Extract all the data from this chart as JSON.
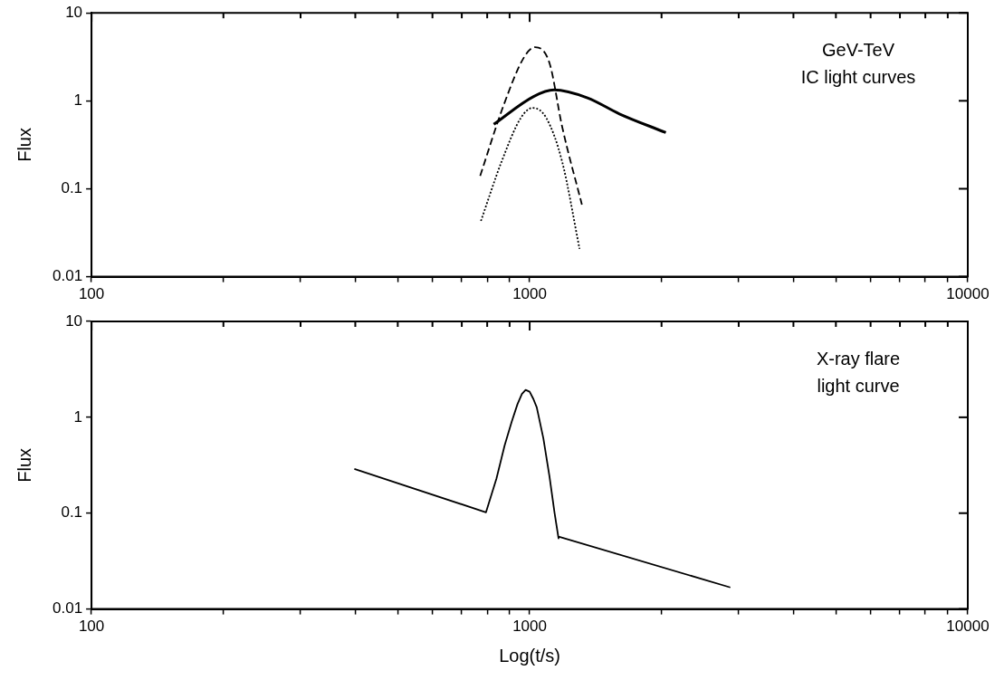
{
  "chart_data": [
    {
      "type": "line",
      "ylabel": "Flux",
      "log": "xy",
      "grid": false,
      "legend": false,
      "marker": "none",
      "xlim": [
        100,
        10000
      ],
      "ylim": [
        0.01,
        10
      ],
      "xticks": [
        100,
        {
          "value": 200,
          "label": null
        },
        {
          "value": 300,
          "label": null
        },
        {
          "value": 400,
          "label": null
        },
        {
          "value": 500,
          "label": null
        },
        {
          "value": 600,
          "label": null
        },
        {
          "value": 700,
          "label": null
        },
        {
          "value": 800,
          "label": null
        },
        {
          "value": 900,
          "label": null
        },
        1000,
        {
          "value": 2000,
          "label": null
        },
        {
          "value": 3000,
          "label": null
        },
        {
          "value": 4000,
          "label": null
        },
        {
          "value": 5000,
          "label": null
        },
        {
          "value": 6000,
          "label": null
        },
        {
          "value": 7000,
          "label": null
        },
        {
          "value": 8000,
          "label": null
        },
        {
          "value": 9000,
          "label": null
        },
        10000
      ],
      "yticks": [
        0.01,
        0.1,
        1,
        10
      ],
      "annotations": [
        "GeV-TeV",
        "IC light curves"
      ],
      "series": [
        {
          "color": "#000000",
          "line_style": "solid",
          "x": [
            828,
            1021,
            1137,
            1355,
            1603,
            2046
          ],
          "values": [
            0.54,
            1.12,
            1.33,
            1.08,
            0.71,
            0.435
          ]
        },
        {
          "color": "#000000",
          "line_style": "dashed",
          "x": [
            771,
            870,
            970,
            1029,
            1110,
            1186,
            1316
          ],
          "values": [
            0.14,
            0.86,
            3.1,
            4.07,
            2.68,
            0.51,
            0.066
          ]
        },
        {
          "color": "#000000",
          "line_style": "dotted",
          "x": [
            774,
            863,
            955,
            1016,
            1091,
            1186,
            1300
          ],
          "values": [
            0.043,
            0.204,
            0.64,
            0.83,
            0.64,
            0.204,
            0.0207
          ]
        }
      ]
    },
    {
      "type": "line",
      "xlabel": "Log(t/s)",
      "ylabel": "Flux",
      "log": "xy",
      "grid": false,
      "legend": false,
      "marker": "none",
      "xlim": [
        100,
        10000
      ],
      "ylim": [
        0.01,
        10
      ],
      "xticks": [
        100,
        {
          "value": 200,
          "label": null
        },
        {
          "value": 300,
          "label": null
        },
        {
          "value": 400,
          "label": null
        },
        {
          "value": 500,
          "label": null
        },
        {
          "value": 600,
          "label": null
        },
        {
          "value": 700,
          "label": null
        },
        {
          "value": 800,
          "label": null
        },
        {
          "value": 900,
          "label": null
        },
        1000,
        {
          "value": 2000,
          "label": null
        },
        {
          "value": 3000,
          "label": null
        },
        {
          "value": 4000,
          "label": null
        },
        {
          "value": 5000,
          "label": null
        },
        {
          "value": 6000,
          "label": null
        },
        {
          "value": 7000,
          "label": null
        },
        {
          "value": 8000,
          "label": null
        },
        {
          "value": 9000,
          "label": null
        },
        10000
      ],
      "yticks": [
        0.01,
        0.1,
        1,
        10
      ],
      "annotations": [
        "X-ray flare",
        "light curve"
      ],
      "series": [
        {
          "color": "#000000",
          "line_style": "solid",
          "x": [
            398,
            795,
            840,
            877,
            910,
            938,
            960,
            979,
            1000,
            1020,
            1038,
            1075,
            1110,
            1140,
            1164,
            1164,
            2871
          ],
          "values": [
            0.29,
            0.102,
            0.23,
            0.51,
            0.9,
            1.37,
            1.75,
            1.93,
            1.85,
            1.55,
            1.27,
            0.6,
            0.24,
            0.1,
            0.0545,
            0.057,
            0.0168
          ]
        }
      ]
    }
  ]
}
